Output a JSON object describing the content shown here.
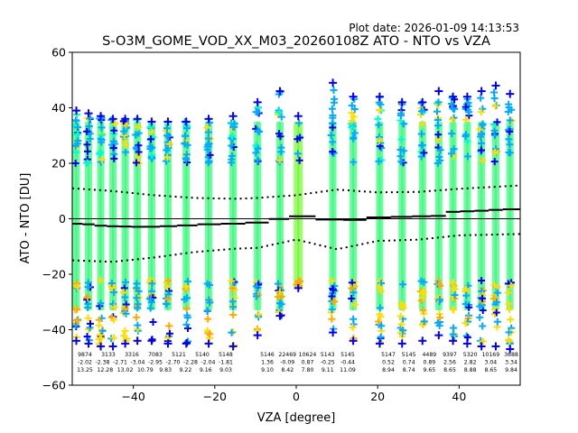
{
  "header": {
    "plot_date": "Plot date: 2026-01-09 14:13:53",
    "title": "S-O3M_GOME_VOD_XX_M03_20260108Z ATO - NTO vs VZA"
  },
  "chart_data": {
    "type": "scatter",
    "title": "S-O3M_GOME_VOD_XX_M03_20260108Z ATO - NTO vs VZA",
    "xlabel": "VZA [degree]",
    "ylabel": "ATO - NTO [DU]",
    "xlim": [
      -55,
      55
    ],
    "ylim": [
      -60,
      60
    ],
    "xticks": [
      -40,
      -20,
      0,
      20,
      40
    ],
    "yticks": [
      -60,
      -40,
      -20,
      0,
      20,
      40,
      60
    ],
    "grid": false,
    "zero_line": 0,
    "columns": [
      {
        "x": -54,
        "lo": -44,
        "hi": 39,
        "mean": -1.8
      },
      {
        "x": -51,
        "lo": -45,
        "hi": 38,
        "mean": -2.0
      },
      {
        "x": -48,
        "lo": -46,
        "hi": 37,
        "mean": -2.5
      },
      {
        "x": -45,
        "lo": -46,
        "hi": 36,
        "mean": -2.7
      },
      {
        "x": -42,
        "lo": -45,
        "hi": 36,
        "mean": -2.8
      },
      {
        "x": -39,
        "lo": -44,
        "hi": 36,
        "mean": -2.9
      },
      {
        "x": -35.5,
        "lo": -44,
        "hi": 35,
        "mean": -2.9
      },
      {
        "x": -31.5,
        "lo": -45,
        "hi": 35,
        "mean": -2.7
      },
      {
        "x": -27,
        "lo": -45,
        "hi": 35,
        "mean": -2.4
      },
      {
        "x": -21.5,
        "lo": -45,
        "hi": 36,
        "mean": -2.0
      },
      {
        "x": -15.5,
        "lo": -46,
        "hi": 37,
        "mean": -1.8
      },
      {
        "x": -9.5,
        "lo": -42,
        "hi": 42,
        "mean": -1.4
      },
      {
        "x": -4,
        "lo": -35,
        "hi": 46,
        "mean": -0.1
      },
      {
        "x": 0.5,
        "lo": -25,
        "hi": 37,
        "mean": 0.9
      },
      {
        "x": 9,
        "lo": -41,
        "hi": 49,
        "mean": -0.3
      },
      {
        "x": 14,
        "lo": -44,
        "hi": 44,
        "mean": -0.4
      },
      {
        "x": 20.5,
        "lo": -45,
        "hi": 44,
        "mean": 0.5
      },
      {
        "x": 26,
        "lo": -45,
        "hi": 42,
        "mean": 0.7
      },
      {
        "x": 31,
        "lo": -44,
        "hi": 42,
        "mean": 0.9
      },
      {
        "x": 35,
        "lo": -42,
        "hi": 46,
        "mean": 1.0
      },
      {
        "x": 38.5,
        "lo": -44,
        "hi": 44,
        "mean": 2.5
      },
      {
        "x": 42,
        "lo": -45,
        "hi": 44,
        "mean": 2.7
      },
      {
        "x": 45.5,
        "lo": -46,
        "hi": 46,
        "mean": 2.9
      },
      {
        "x": 49,
        "lo": -46,
        "hi": 48,
        "mean": 3.2
      },
      {
        "x": 52.5,
        "lo": -47,
        "hi": 45,
        "mean": 3.4
      }
    ],
    "mean_plus_sd": [
      {
        "x": -55,
        "y": 11.0
      },
      {
        "x": -45,
        "y": 10.0
      },
      {
        "x": -35,
        "y": 8.5
      },
      {
        "x": -25,
        "y": 7.5
      },
      {
        "x": -15,
        "y": 7.2
      },
      {
        "x": -9.5,
        "y": 7.5
      },
      {
        "x": 0,
        "y": 8.5
      },
      {
        "x": 10,
        "y": 10.5
      },
      {
        "x": 20,
        "y": 9.5
      },
      {
        "x": 30,
        "y": 9.7
      },
      {
        "x": 40,
        "y": 10.8
      },
      {
        "x": 55,
        "y": 12.0
      }
    ],
    "mean_minus_sd": [
      {
        "x": -55,
        "y": -15.0
      },
      {
        "x": -45,
        "y": -15.5
      },
      {
        "x": -35,
        "y": -14.0
      },
      {
        "x": -25,
        "y": -12.0
      },
      {
        "x": -15,
        "y": -10.8
      },
      {
        "x": -9.5,
        "y": -10.5
      },
      {
        "x": 0,
        "y": -7.5
      },
      {
        "x": 10,
        "y": -11.0
      },
      {
        "x": 20,
        "y": -8.0
      },
      {
        "x": 30,
        "y": -7.5
      },
      {
        "x": 40,
        "y": -6.0
      },
      {
        "x": 55,
        "y": -5.5
      }
    ],
    "stats_block_left": {
      "row1": [
        "9874",
        "3133",
        "3316",
        "7083",
        "5121",
        "5140",
        "5148"
      ],
      "row2": [
        "-2.02",
        "-2.38",
        "-2.71",
        "-3.04",
        "-2.95",
        "-2.70",
        "-2.28",
        "-2.04",
        "-1.81"
      ],
      "row3": [
        "13.25",
        "12.28",
        "13.02",
        "10.79",
        "9.83",
        "9.22",
        "9.16",
        "9.03"
      ]
    },
    "stats_block_mid": {
      "row1": [
        "5146",
        "22469",
        "10624",
        "5143",
        "5145"
      ],
      "row2": [
        "1.36",
        "-0.09",
        "0.87",
        "-0.25",
        "-0.44"
      ],
      "row3": [
        "9.10",
        "8.42",
        "7.80",
        "9.11",
        "11.09"
      ]
    },
    "stats_block_right": {
      "row1": [
        "5147",
        "5145",
        "4489",
        "9397",
        "5320",
        "10169",
        "3688"
      ],
      "row2": [
        "0.52",
        "0.74",
        "0.89",
        "2.56",
        "2.82",
        "3.04",
        "3.34"
      ],
      "row3": [
        "8.94",
        "8.74",
        "9.65",
        "8.65",
        "8.88",
        "8.65",
        "9.84"
      ]
    },
    "colors": {
      "body": "#66ff99",
      "center_body": "#99ff66",
      "outlier_sky": "#00aaff",
      "outlier_blue": "#0000ee",
      "outlier_yellow": "#ffdd00",
      "outlier_orange": "#ffaa00",
      "outlier_cyan": "#00ffcc",
      "mean_line": "#000000"
    }
  }
}
